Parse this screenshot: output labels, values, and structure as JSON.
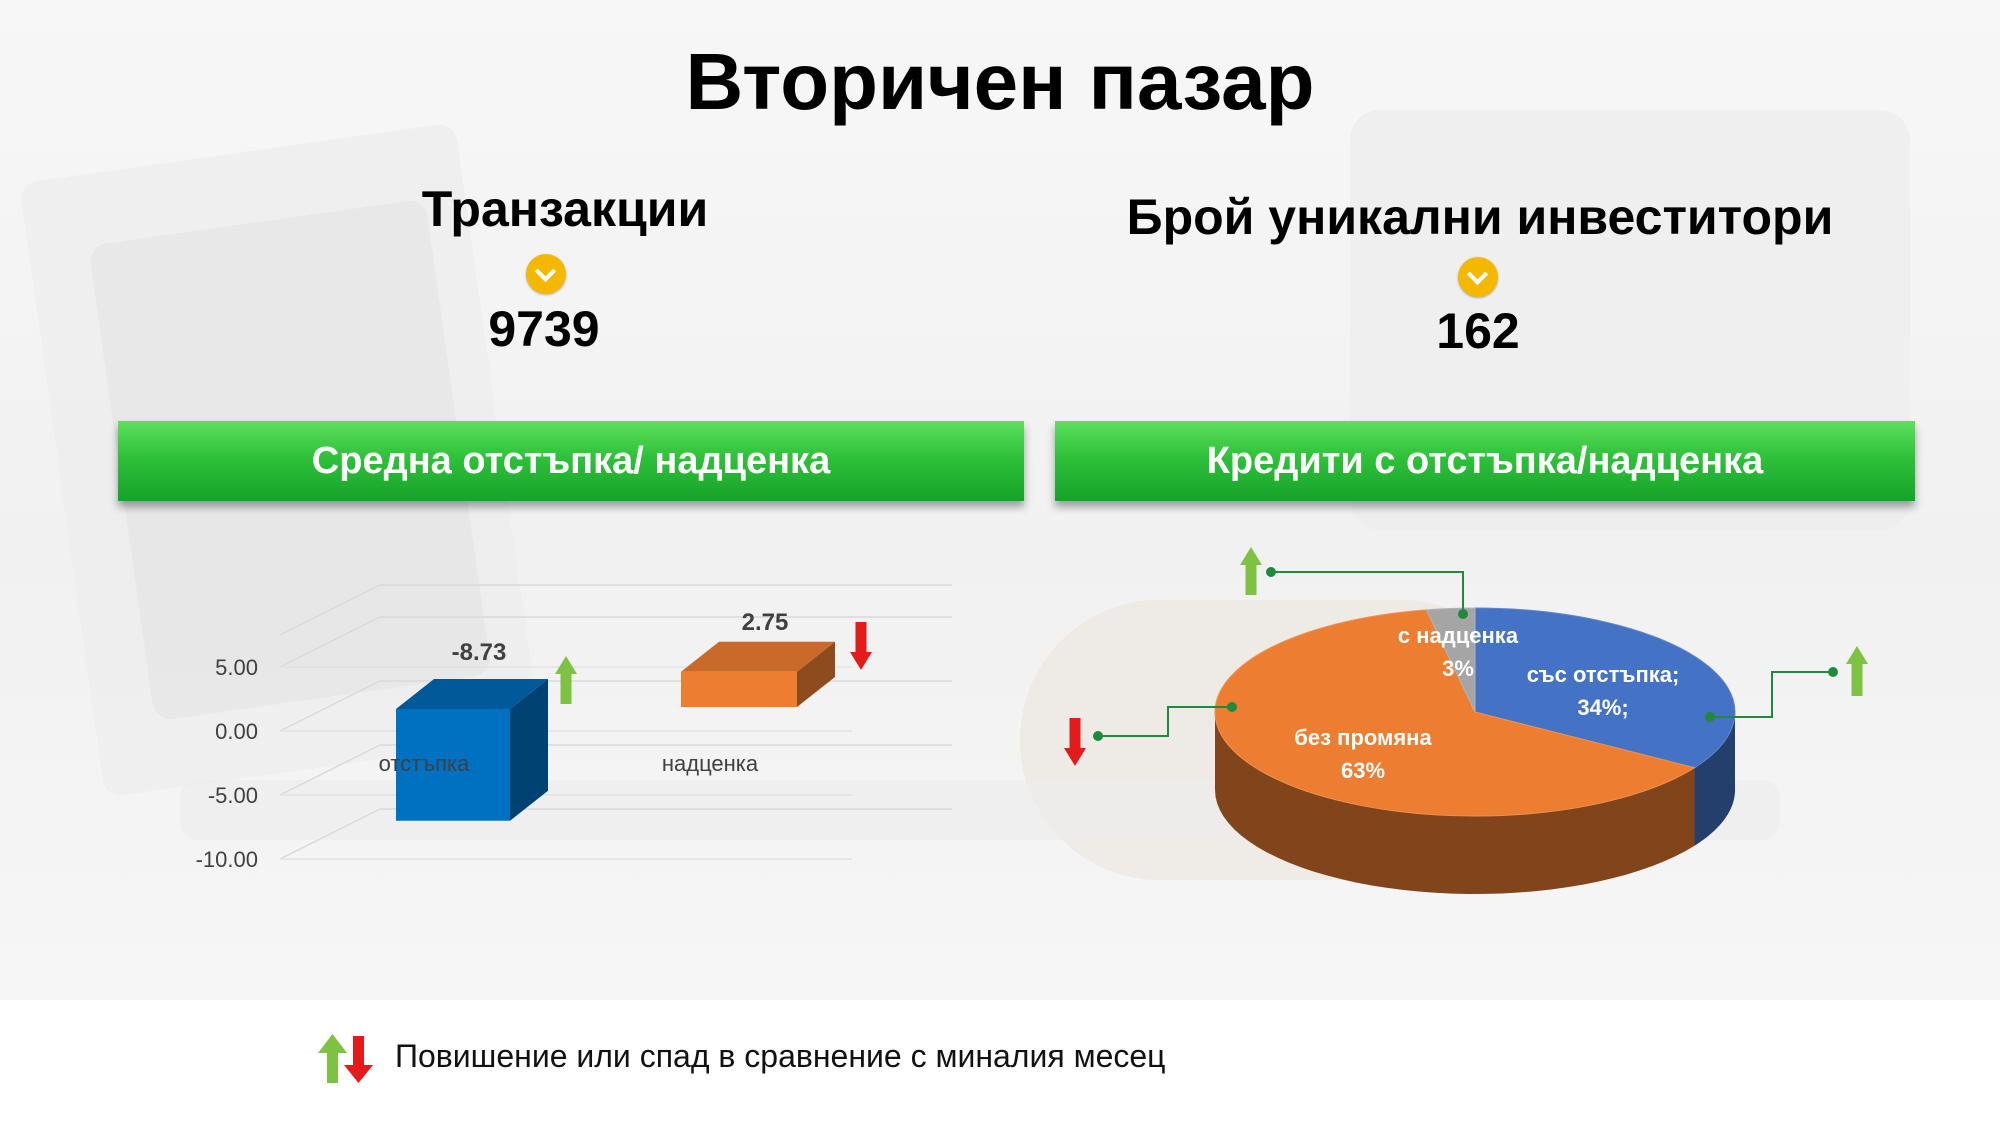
{
  "title": "Вторичен пазар",
  "kpis": [
    {
      "label": "Транзакции",
      "value": "9739",
      "icon": "chevron-down-icon"
    },
    {
      "label": "Брой уникални инвеститори",
      "value": "162",
      "icon": "chevron-down-icon"
    }
  ],
  "banners": [
    "Средна отстъпка/ надценка",
    "Кредити с отстъпка/надценка"
  ],
  "colors": {
    "banner": "#2fc13a",
    "up": "#7dc242",
    "down": "#e31b1b",
    "blue": "#4472c4",
    "orange": "#ed7d31",
    "gray": "#a5a5a5",
    "leader": "#1f8a3c"
  },
  "chart_data": [
    {
      "type": "bar",
      "categories": [
        "отстъпка",
        "надценка"
      ],
      "values": [
        -8.73,
        2.75
      ],
      "data_labels": [
        "-8.73",
        "2.75"
      ],
      "trend": [
        "up",
        "down"
      ],
      "colors": [
        "#0070c0",
        "#ed7d31"
      ],
      "yticks": [
        "5.00",
        "0.00",
        "-5.00",
        "-10.00"
      ],
      "ylim": [
        -10,
        7.5
      ],
      "grid": true
    },
    {
      "type": "pie",
      "slices": [
        {
          "label": "със отстъпка;",
          "pct_label": "34%;",
          "value": 34,
          "trend": "up",
          "color": "#4472c4"
        },
        {
          "label": "без промяна",
          "pct_label": "63%",
          "value": 63,
          "trend": "down",
          "color": "#ed7d31"
        },
        {
          "label": "с надценка",
          "pct_label": "3%",
          "value": 3,
          "trend": "up",
          "color": "#a5a5a5"
        }
      ]
    }
  ],
  "legend": {
    "text": "Повишение или спад в сравнение с миналия месец",
    "icons": [
      "arrow-up-icon",
      "arrow-down-icon"
    ]
  }
}
